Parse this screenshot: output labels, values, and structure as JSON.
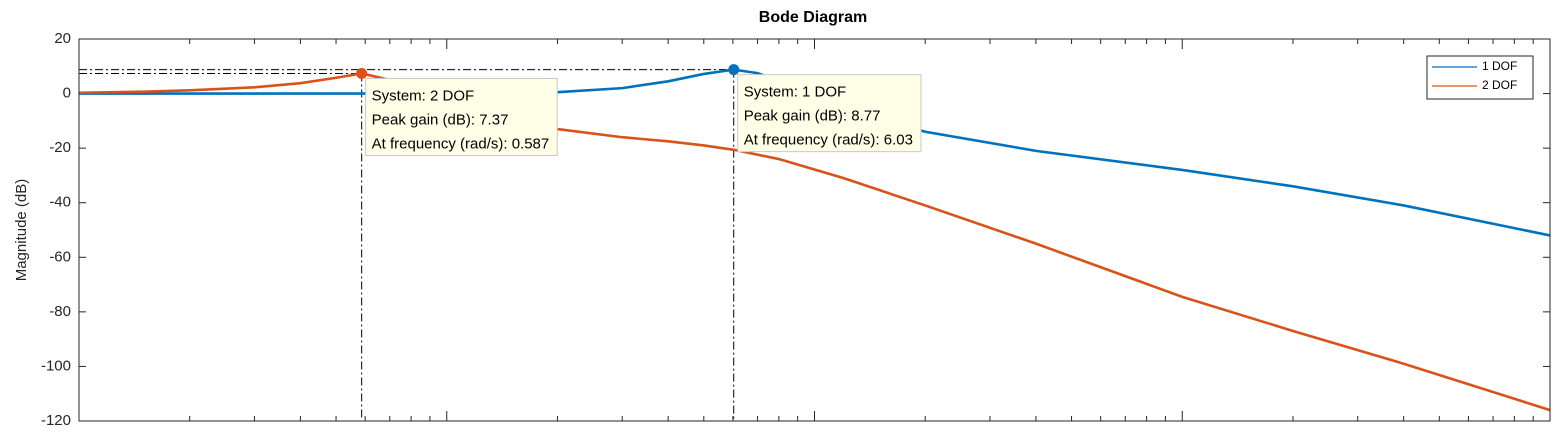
{
  "chart_data": {
    "type": "line",
    "title": "Bode Diagram",
    "y_label": "Magnitude (dB)",
    "x_log": true,
    "xlim": [
      0.1,
      1000
    ],
    "xticks": [
      0.1,
      1,
      10,
      100,
      1000
    ],
    "ylim": [
      -120,
      20
    ],
    "yticks": [
      -120,
      -100,
      -80,
      -60,
      -40,
      -20,
      0,
      20
    ],
    "legend": "northeast",
    "series": [
      {
        "name": "1 DOF",
        "color": "#0072BD",
        "x": [
          0.1,
          1,
          1.5,
          2,
          3,
          4,
          5,
          6.03,
          7,
          9,
          12,
          20,
          40,
          100,
          200,
          400,
          1000
        ],
        "values": [
          0,
          0,
          0.1,
          0.5,
          2,
          4.5,
          7.2,
          8.77,
          7.5,
          2,
          -5,
          -14,
          -21,
          -28,
          -34,
          -41,
          -52
        ]
      },
      {
        "name": "2 DOF",
        "color": "#D95319",
        "x": [
          0.1,
          0.15,
          0.2,
          0.3,
          0.4,
          0.5,
          0.587,
          0.7,
          0.8,
          1,
          1.3,
          2,
          3,
          4,
          5,
          6.03,
          8,
          12,
          20,
          40,
          100,
          200,
          400,
          1000
        ],
        "values": [
          0.3,
          0.7,
          1.2,
          2.3,
          3.8,
          5.8,
          7.37,
          5,
          1.5,
          -5,
          -9.5,
          -13,
          -16,
          -17.5,
          -19,
          -20.6,
          -24,
          -31,
          -41,
          -55,
          -74.5,
          -87,
          -99,
          -116
        ]
      }
    ],
    "datatips": [
      {
        "series": 1,
        "x": 0.587,
        "y": 7.37,
        "lines": [
          "System: 2 DOF",
          "Peak gain (dB): 7.37",
          "At frequency (rad/s): 0.587"
        ]
      },
      {
        "series": 0,
        "x": 6.03,
        "y": 8.77,
        "lines": [
          "System: 1 DOF",
          "Peak gain (dB): 8.77",
          "At frequency (rad/s): 6.03"
        ]
      }
    ]
  }
}
